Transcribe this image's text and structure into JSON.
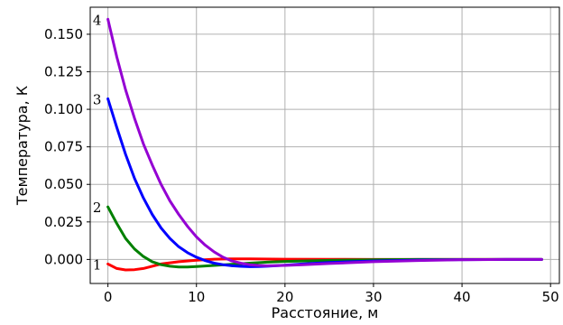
{
  "chart_data": {
    "type": "line",
    "title": "",
    "xlabel": "Расстояние, м",
    "ylabel": "Температура, К",
    "xlim": [
      -2,
      51
    ],
    "ylim": [
      -0.016,
      0.168
    ],
    "grid": true,
    "legend": "none",
    "x_ticks": [
      0,
      10,
      20,
      30,
      40,
      50
    ],
    "x_tick_labels": [
      "0",
      "10",
      "20",
      "30",
      "40",
      "50"
    ],
    "y_ticks": [
      0.0,
      0.025,
      0.05,
      0.075,
      0.1,
      0.125,
      0.15
    ],
    "y_tick_labels": [
      "0.000",
      "0.025",
      "0.050",
      "0.075",
      "0.100",
      "0.125",
      "0.150"
    ],
    "series": [
      {
        "label": "1",
        "color": "#ff0000",
        "x": [
          0,
          1,
          2,
          3,
          4,
          5,
          6,
          8,
          10,
          12,
          14,
          16,
          20,
          25,
          30,
          35,
          40,
          45,
          49
        ],
        "y": [
          -0.003,
          -0.006,
          -0.007,
          -0.0068,
          -0.006,
          -0.0045,
          -0.003,
          -0.0015,
          -0.0005,
          0.0002,
          0.0004,
          0.0004,
          0.0002,
          0.0001,
          0.0,
          0.0,
          0.0,
          0.0,
          0.0
        ]
      },
      {
        "label": "2",
        "color": "#008000",
        "x": [
          0,
          1,
          2,
          3,
          4,
          5,
          6,
          7,
          8,
          9,
          10,
          12,
          14,
          16,
          18,
          20,
          25,
          30,
          35,
          40,
          45,
          49
        ],
        "y": [
          0.035,
          0.024,
          0.014,
          0.007,
          0.002,
          -0.0015,
          -0.0035,
          -0.0045,
          -0.005,
          -0.005,
          -0.0047,
          -0.004,
          -0.0032,
          -0.0025,
          -0.0018,
          -0.0013,
          -0.0006,
          -0.0002,
          0.0,
          0.0,
          0.0,
          0.0
        ]
      },
      {
        "label": "3",
        "color": "#0000ff",
        "x": [
          0,
          1,
          2,
          3,
          4,
          5,
          6,
          7,
          8,
          9,
          10,
          11,
          12,
          13,
          14,
          15,
          16,
          17,
          18,
          20,
          22,
          25,
          30,
          35,
          40,
          45,
          49
        ],
        "y": [
          0.107,
          0.088,
          0.07,
          0.054,
          0.041,
          0.03,
          0.021,
          0.014,
          0.0085,
          0.0045,
          0.0015,
          -0.0008,
          -0.0025,
          -0.0035,
          -0.0042,
          -0.0046,
          -0.0048,
          -0.0047,
          -0.0045,
          -0.0038,
          -0.003,
          -0.002,
          -0.001,
          -0.0004,
          -0.0001,
          0.0,
          0.0
        ]
      },
      {
        "label": "4",
        "color": "#9400d3",
        "x": [
          0,
          1,
          2,
          3,
          4,
          5,
          6,
          7,
          8,
          9,
          10,
          11,
          12,
          13,
          14,
          15,
          16,
          17,
          18,
          20,
          22,
          25,
          30,
          35,
          40,
          45,
          49
        ],
        "y": [
          0.16,
          0.135,
          0.113,
          0.094,
          0.077,
          0.063,
          0.05,
          0.039,
          0.03,
          0.022,
          0.015,
          0.0095,
          0.005,
          0.0015,
          -0.001,
          -0.0025,
          -0.0035,
          -0.004,
          -0.0042,
          -0.004,
          -0.0035,
          -0.0027,
          -0.0015,
          -0.0007,
          -0.0002,
          0.0,
          0.0
        ]
      }
    ]
  }
}
